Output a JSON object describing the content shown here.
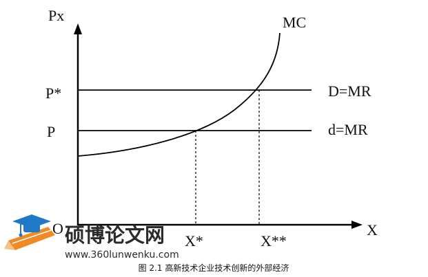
{
  "diagram": {
    "y_axis_label": "Px",
    "x_axis_label": "X",
    "origin_label": "O",
    "price_high_label": "P*",
    "price_low_label": "P",
    "curve_label": "MC",
    "line_high_label": "D=MR",
    "line_low_label": "d=MR",
    "x_star_label": "X*",
    "x_double_star_label": "X**"
  },
  "watermark": {
    "cn_text": "硕博论文网",
    "url": "www.360lunwenku.com",
    "colors": {
      "text": "#2b2b2b",
      "cap_blue": "#1f78c8",
      "pencil_orange": "#f08a24"
    }
  },
  "caption": {
    "text": "图 2.1  高新技术企业技术创新的外部经济"
  },
  "icons": [
    "graduation-cap-icon",
    "pencil-icon"
  ]
}
